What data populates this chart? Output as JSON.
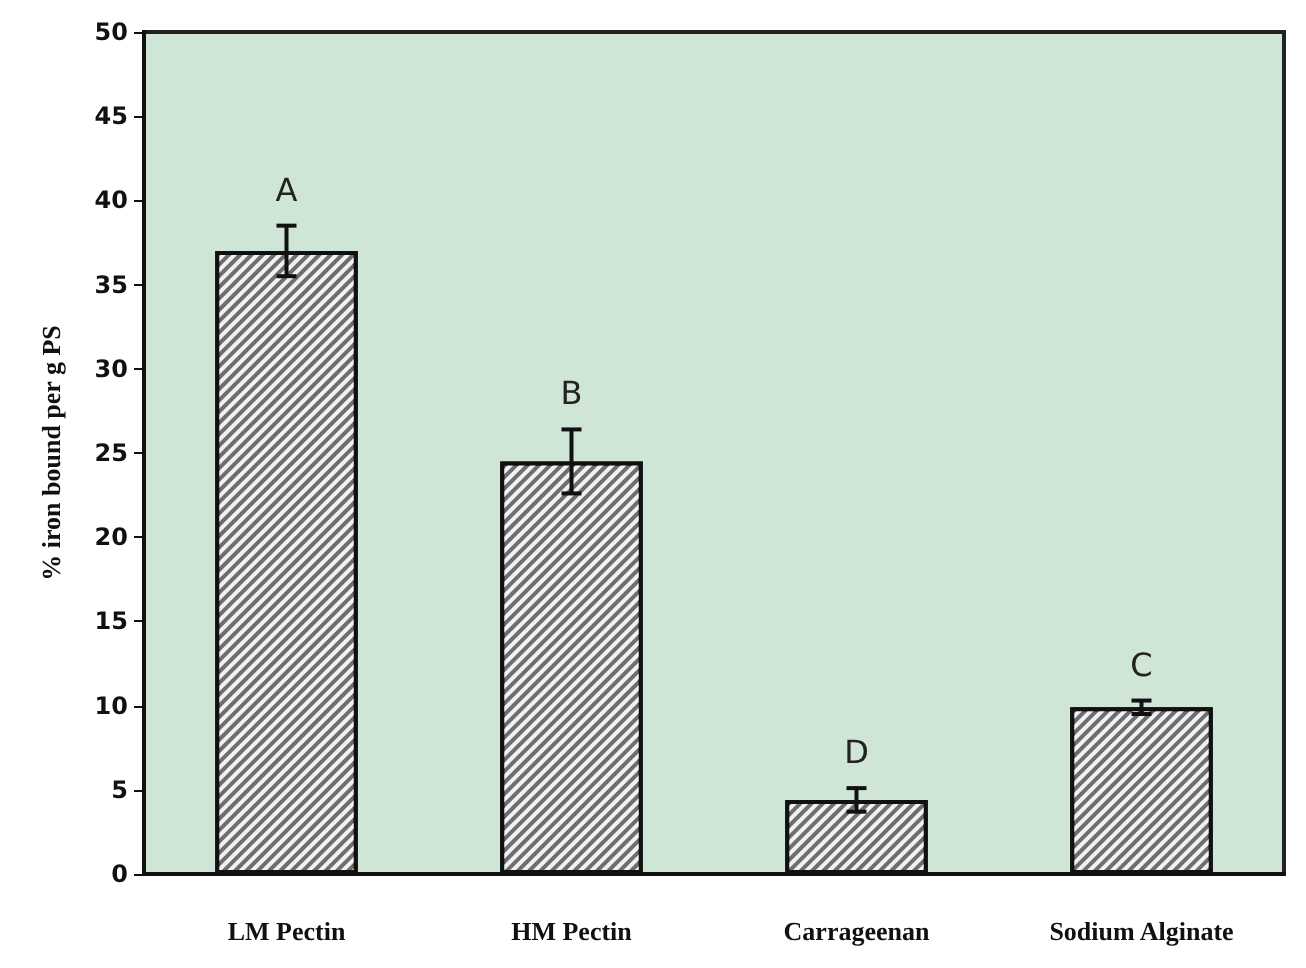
{
  "chart_data": {
    "type": "bar",
    "ylabel": "% iron bound per g PS",
    "categories": [
      "LM Pectin",
      "HM Pectin",
      "Carrageenan",
      "Sodium Alginate"
    ],
    "values": [
      37,
      24.5,
      4.4,
      9.9
    ],
    "errors": [
      1.5,
      1.9,
      0.7,
      0.4
    ],
    "color": "#6e6e6e",
    "ylim": [
      0,
      50
    ],
    "yticks": [
      0,
      5,
      10,
      15,
      20,
      25,
      30,
      35,
      40,
      45,
      50
    ],
    "grid": false,
    "annotations": [
      {
        "text": "A",
        "x": "LM Pectin",
        "y": 38.5
      },
      {
        "text": "B",
        "x": "HM Pectin",
        "y": 26.4
      },
      {
        "text": "D",
        "x": "Carrageenan",
        "y": 5.1
      },
      {
        "text": "C",
        "x": "Sodium Alginate",
        "y": 10.3
      }
    ]
  }
}
